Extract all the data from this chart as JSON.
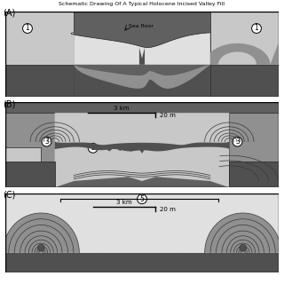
{
  "title": "Schematic Drawing Of A Typical Holocene Incised Valley Fill",
  "panels": [
    "(A)",
    "(B)",
    "(C)"
  ],
  "colors": {
    "bg_dark": "#606060",
    "dark": "#505050",
    "mid_dark": "#707070",
    "mid": "#909090",
    "light": "#c8c8c8",
    "very_light": "#e0e0e0",
    "white": "#ffffff",
    "black": "#000000",
    "outline": "#222222",
    "contour": "#383838"
  },
  "scale_bar": {
    "km_label": "3 km",
    "m_label": "20 m"
  },
  "sea_floor_label": "Sea floor"
}
